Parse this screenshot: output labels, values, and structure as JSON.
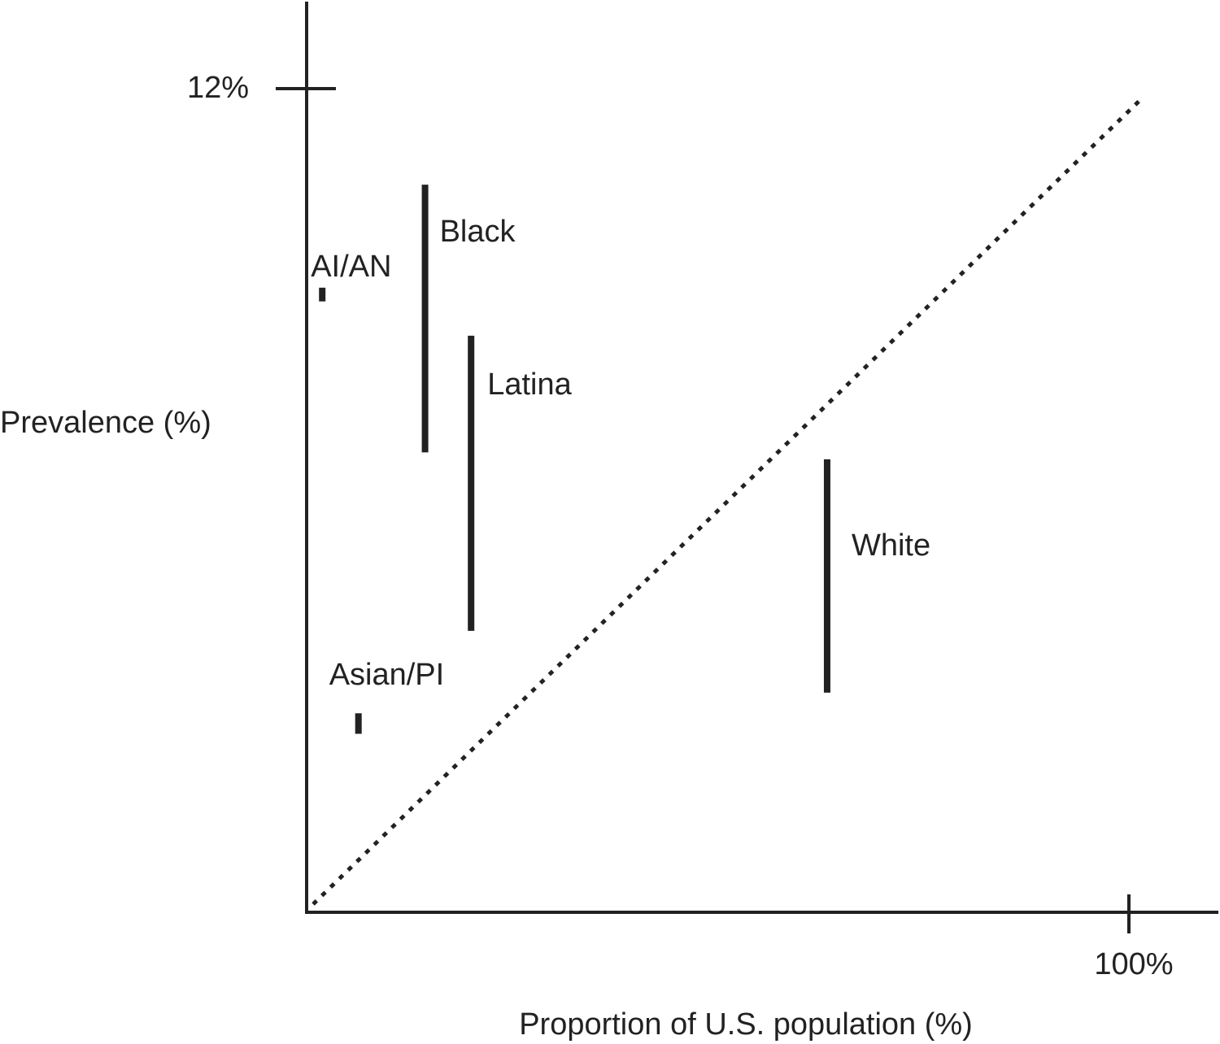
{
  "chart_data": {
    "type": "range",
    "xlabel": "Proportion of U.S. population (%)",
    "ylabel": "Prevalence (%)",
    "x_tick_label": "100%",
    "y_tick_label": "12%",
    "xlim": [
      0,
      100
    ],
    "ylim": [
      0,
      12
    ],
    "reference_line": {
      "style": "dotted",
      "from": [
        0,
        0
      ],
      "to": [
        100,
        12
      ]
    },
    "groups": [
      {
        "label": "AI/AN",
        "x": 1.9,
        "y_low": 8.9,
        "y_high": 9.1
      },
      {
        "label": "Black",
        "x": 14.4,
        "y_low": 6.7,
        "y_high": 10.6
      },
      {
        "label": "Latina",
        "x": 20.0,
        "y_low": 4.1,
        "y_high": 8.4
      },
      {
        "label": "Asian/PI",
        "x": 6.3,
        "y_low": 2.6,
        "y_high": 2.9
      },
      {
        "label": "White",
        "x": 63.3,
        "y_low": 3.2,
        "y_high": 6.6
      }
    ],
    "colors": {
      "ink": "#222222",
      "background": "#ffffff"
    }
  }
}
